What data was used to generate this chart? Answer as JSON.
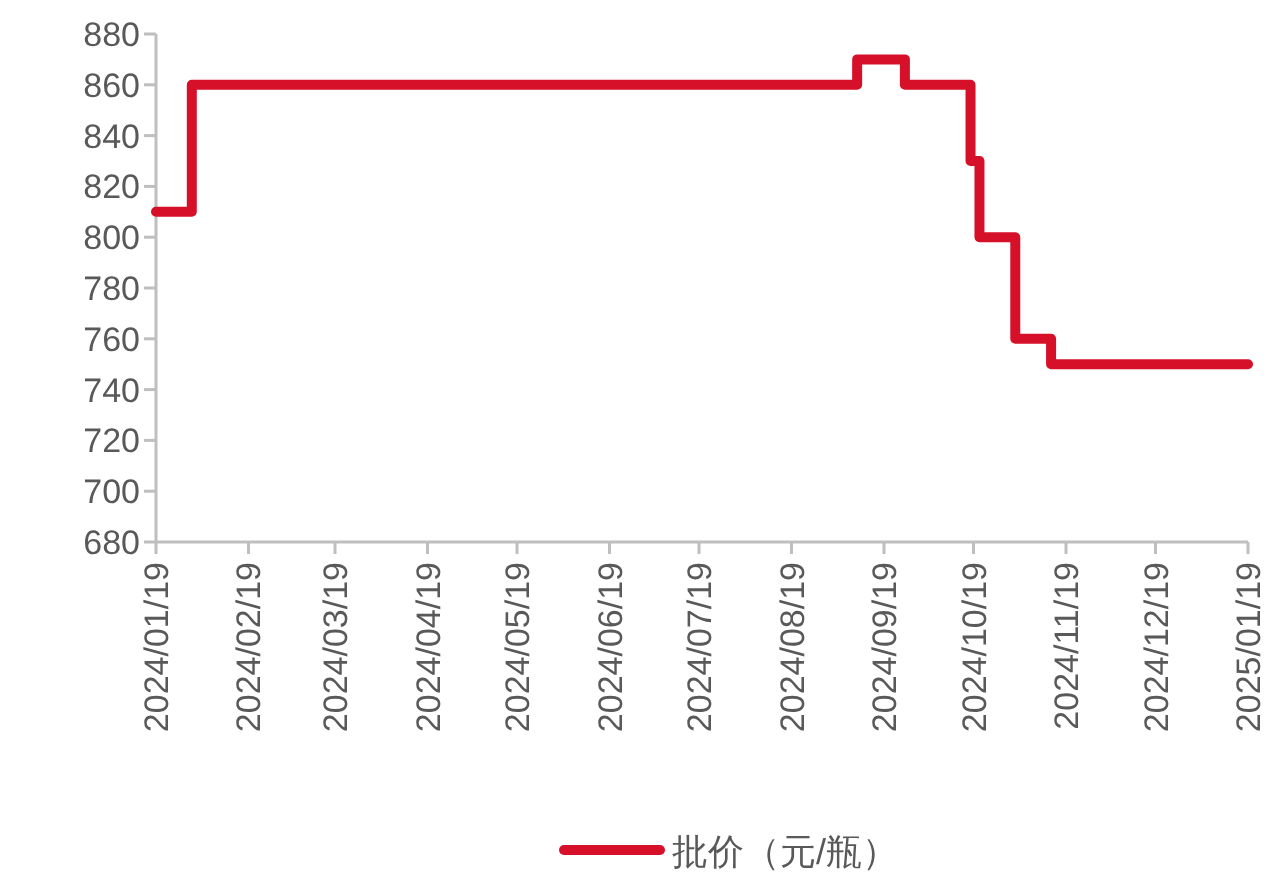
{
  "chart_data": {
    "type": "step",
    "x": [
      "2024-01-19",
      "2024-01-31",
      "2024-09-10",
      "2024-09-26",
      "2024-10-18",
      "2024-10-21",
      "2024-11-02",
      "2024-11-14",
      "2025-01-19"
    ],
    "series": [
      {
        "name": "批价（元/瓶）",
        "color": "#d7102a",
        "values": [
          810,
          860,
          870,
          860,
          830,
          800,
          760,
          750,
          750
        ]
      }
    ],
    "xlim": [
      "2024-01-19",
      "2025-01-19"
    ],
    "xticks": [
      {
        "value": "2024-01-19",
        "label": "2024/01/19"
      },
      {
        "value": "2024-02-19",
        "label": "2024/02/19"
      },
      {
        "value": "2024-03-19",
        "label": "2024/03/19"
      },
      {
        "value": "2024-04-19",
        "label": "2024/04/19"
      },
      {
        "value": "2024-05-19",
        "label": "2024/05/19"
      },
      {
        "value": "2024-06-19",
        "label": "2024/06/19"
      },
      {
        "value": "2024-07-19",
        "label": "2024/07/19"
      },
      {
        "value": "2024-08-19",
        "label": "2024/08/19"
      },
      {
        "value": "2024-09-19",
        "label": "2024/09/19"
      },
      {
        "value": "2024-10-19",
        "label": "2024/10/19"
      },
      {
        "value": "2024-11-19",
        "label": "2024/11/19"
      },
      {
        "value": "2024-12-19",
        "label": "2024/12/19"
      },
      {
        "value": "2025-01-19",
        "label": "2025/01/19"
      }
    ],
    "ylim": [
      680,
      880
    ],
    "yticks": [
      680,
      700,
      720,
      740,
      760,
      780,
      800,
      820,
      840,
      860,
      880
    ],
    "legend": "bottom",
    "line_style": "solid",
    "marker": "none"
  }
}
